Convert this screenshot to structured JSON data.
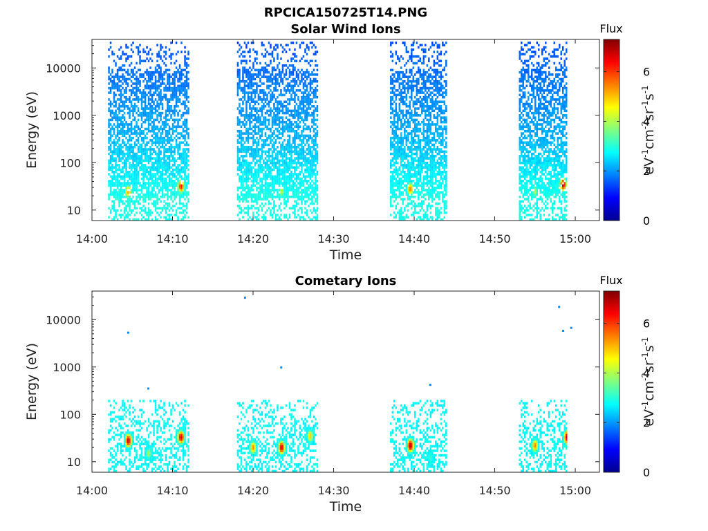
{
  "figure_title": "RPCICA150725T14.PNG",
  "chart_data": [
    {
      "type": "heatmap",
      "title": "Solar Wind Ions",
      "xlabel": "Time",
      "ylabel": "Energy (eV)",
      "yscale": "log",
      "ylim": [
        6,
        40000
      ],
      "xlim": [
        "14:00",
        "15:03"
      ],
      "x_ticks": [
        "14:00",
        "14:10",
        "14:20",
        "14:30",
        "14:40",
        "14:50",
        "15:00"
      ],
      "y_ticks": [
        "10",
        "100",
        "1000",
        "10000"
      ],
      "colorbar": {
        "label": "Flux",
        "units": "eV-1cm-2sr-1s-1",
        "range": [
          0,
          7.3
        ],
        "ticks": [
          "0",
          "2",
          "4",
          "6"
        ]
      },
      "observation_windows": [
        [
          "14:02",
          "14:12"
        ],
        [
          "14:18",
          "14:28"
        ],
        [
          "14:37",
          "14:44"
        ],
        [
          "14:53",
          "14:59"
        ]
      ],
      "hotspots": [
        {
          "time": "14:04.5",
          "energy_ev": 25,
          "flux": 5.3
        },
        {
          "time": "14:11",
          "energy_ev": 32,
          "flux": 6.3
        },
        {
          "time": "14:23.5",
          "energy_ev": 25,
          "flux": 4.2
        },
        {
          "time": "14:39.5",
          "energy_ev": 28,
          "flux": 5.5
        },
        {
          "time": "14:55",
          "energy_ev": 25,
          "flux": 4.0
        },
        {
          "time": "14:58.5",
          "energy_ev": 35,
          "flux": 6.8
        }
      ]
    },
    {
      "type": "heatmap",
      "title": "Cometary Ions",
      "xlabel": "Time",
      "ylabel": "Energy (eV)",
      "yscale": "log",
      "ylim": [
        6,
        40000
      ],
      "xlim": [
        "14:00",
        "15:03"
      ],
      "x_ticks": [
        "14:00",
        "14:10",
        "14:20",
        "14:30",
        "14:40",
        "14:50",
        "15:00"
      ],
      "y_ticks": [
        "10",
        "100",
        "1000",
        "10000"
      ],
      "colorbar": {
        "label": "Flux",
        "units": "eV-1cm-2sr-1s-1",
        "range": [
          0,
          7.3
        ],
        "ticks": [
          "0",
          "2",
          "4",
          "6"
        ]
      },
      "observation_windows": [
        [
          "14:02",
          "14:12"
        ],
        [
          "14:18",
          "14:28"
        ],
        [
          "14:37",
          "14:44"
        ],
        [
          "14:53",
          "14:59"
        ]
      ],
      "hotspots": [
        {
          "time": "14:04.5",
          "energy_ev": 28,
          "flux": 6.8
        },
        {
          "time": "14:07",
          "energy_ev": 15,
          "flux": 4.0
        },
        {
          "time": "14:11",
          "energy_ev": 33,
          "flux": 6.8
        },
        {
          "time": "14:20",
          "energy_ev": 20,
          "flux": 5.5
        },
        {
          "time": "14:23.5",
          "energy_ev": 20,
          "flux": 6.8
        },
        {
          "time": "14:27",
          "energy_ev": 35,
          "flux": 5.0
        },
        {
          "time": "14:39.5",
          "energy_ev": 22,
          "flux": 7.0
        },
        {
          "time": "14:42",
          "energy_ev": 12,
          "flux": 3.2
        },
        {
          "time": "14:55",
          "energy_ev": 22,
          "flux": 5.5
        },
        {
          "time": "14:59",
          "energy_ev": 33,
          "flux": 7.0
        }
      ],
      "isolated_points": [
        {
          "time": "14:04.5",
          "energy_ev": 5300
        },
        {
          "time": "14:07",
          "energy_ev": 350
        },
        {
          "time": "14:19",
          "energy_ev": 29000
        },
        {
          "time": "14:23.5",
          "energy_ev": 980
        },
        {
          "time": "14:42",
          "energy_ev": 420
        },
        {
          "time": "14:58",
          "energy_ev": 18500
        },
        {
          "time": "14:58.5",
          "energy_ev": 5800
        },
        {
          "time": "14:59.5",
          "energy_ev": 6700
        }
      ]
    }
  ]
}
